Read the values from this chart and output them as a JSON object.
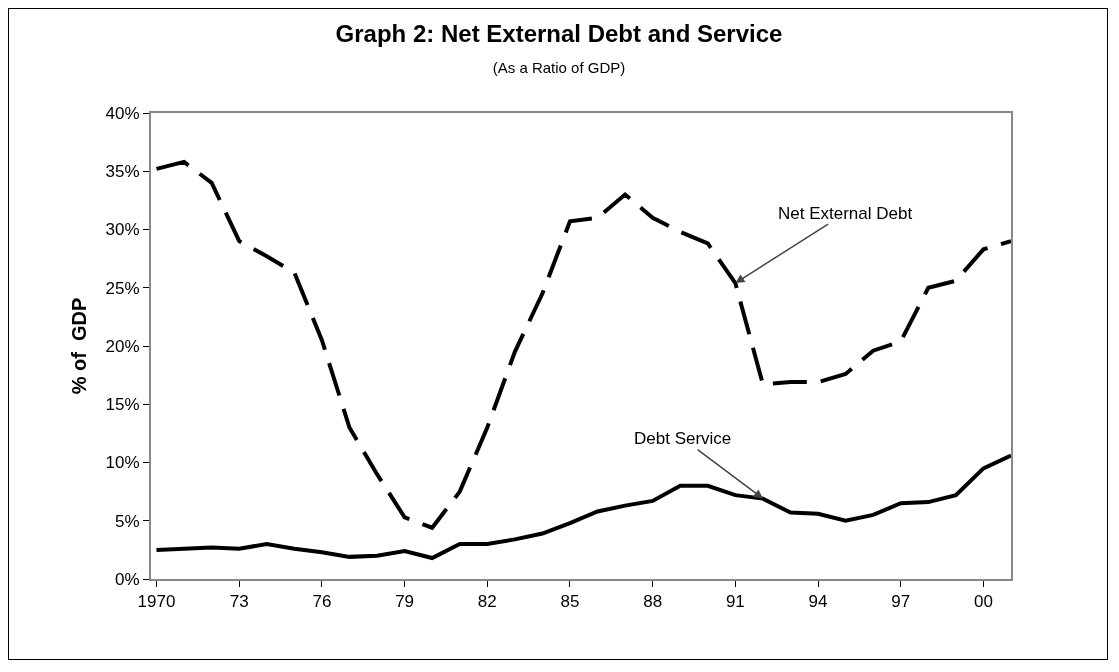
{
  "chart_data": {
    "type": "line",
    "title": "Graph 2: Net External Debt and Service",
    "subtitle": "(As a Ratio of GDP)",
    "ylabel": "% of  GDP",
    "x": [
      1970,
      1971,
      1972,
      1973,
      1974,
      1975,
      1976,
      1977,
      1978,
      1979,
      1980,
      1981,
      1982,
      1983,
      1984,
      1985,
      1986,
      1987,
      1988,
      1989,
      1990,
      1991,
      1992,
      1993,
      1994,
      1995,
      1996,
      1997,
      1998,
      1999,
      2000,
      2001
    ],
    "series": [
      {
        "color": "#000000",
        "line_style": "dashed",
        "values": [
          35.2,
          35.8,
          34.0,
          29.0,
          27.7,
          26.3,
          20.5,
          13.0,
          9.0,
          5.3,
          4.4,
          7.5,
          13.0,
          19.5,
          24.5,
          30.7,
          31.0,
          33.0,
          31.0,
          29.8,
          28.8,
          25.4,
          16.7,
          16.9,
          16.9,
          17.6,
          19.6,
          20.4,
          25.0,
          25.6,
          28.3,
          29.0
        ]
      },
      {
        "color": "#000000",
        "line_style": "solid",
        "values": [
          2.5,
          2.6,
          2.7,
          2.6,
          3.0,
          2.6,
          2.3,
          1.9,
          2.0,
          2.4,
          1.8,
          3.0,
          3.0,
          3.4,
          3.9,
          4.8,
          5.8,
          6.3,
          6.7,
          8.0,
          8.0,
          7.2,
          6.9,
          5.7,
          5.6,
          5.0,
          5.5,
          6.5,
          6.6,
          7.2,
          9.5,
          10.6
        ]
      }
    ],
    "xlim": [
      1969.8,
      2001
    ],
    "xticks": [
      {
        "value": 1970,
        "label": "1970"
      },
      {
        "value": 1973,
        "label": "73"
      },
      {
        "value": 1976,
        "label": "76"
      },
      {
        "value": 1979,
        "label": "79"
      },
      {
        "value": 1982,
        "label": "82"
      },
      {
        "value": 1985,
        "label": "85"
      },
      {
        "value": 1988,
        "label": "88"
      },
      {
        "value": 1991,
        "label": "91"
      },
      {
        "value": 1994,
        "label": "94"
      },
      {
        "value": 1997,
        "label": "97"
      },
      {
        "value": 2000,
        "label": "00"
      }
    ],
    "ylim": [
      0,
      40
    ],
    "yticks": [
      {
        "value": 0,
        "label": "0%"
      },
      {
        "value": 5,
        "label": "5%"
      },
      {
        "value": 10,
        "label": "10%"
      },
      {
        "value": 15,
        "label": "15%"
      },
      {
        "value": 20,
        "label": "20%"
      },
      {
        "value": 25,
        "label": "25%"
      },
      {
        "value": 30,
        "label": "30%"
      },
      {
        "value": 35,
        "label": "35%"
      },
      {
        "value": 40,
        "label": "40%"
      }
    ],
    "annotations": [
      {
        "text": "Net External Debt",
        "x": 1991,
        "y": 25.4
      },
      {
        "text": "Debt Service",
        "x": 1992,
        "y": 6.9
      }
    ],
    "grid": false,
    "legend": false,
    "marker": "none"
  }
}
